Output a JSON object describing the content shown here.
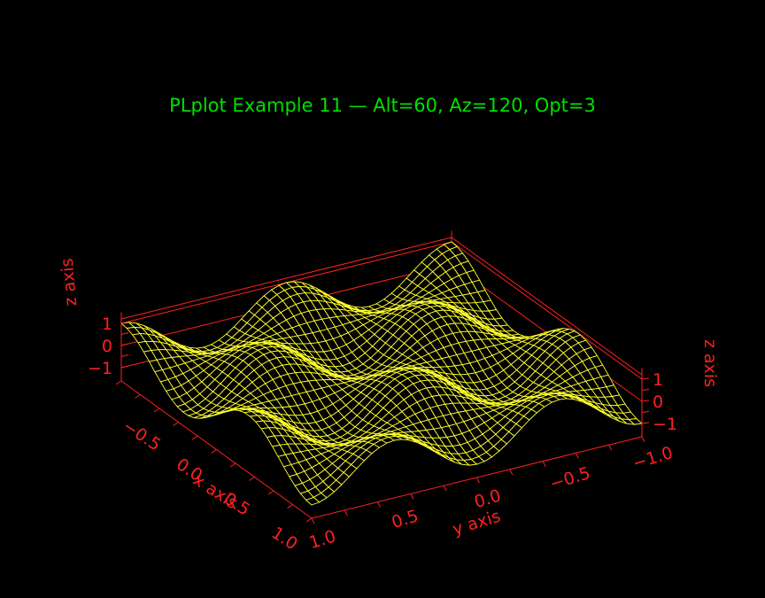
{
  "chart_data": {
    "type": "surface-mesh-3d",
    "title": "PLplot Example 11 — Alt=60, Az=120, Opt=3",
    "xlabel": "x axis",
    "ylabel": "y axis",
    "zlabel": "z axis",
    "xlim": [
      -1.0,
      1.0
    ],
    "ylim": [
      -1.0,
      1.0
    ],
    "zlim": [
      -1.2,
      1.2
    ],
    "altitude": 60,
    "azimuth": 120,
    "opt": 3,
    "x_ticks": [
      {
        "value": 1.0,
        "label": "1.0"
      },
      {
        "value": 0.5,
        "label": "0.5"
      },
      {
        "value": 0.0,
        "label": "0.0"
      },
      {
        "value": -0.5,
        "label": "−0.5"
      }
    ],
    "y_ticks": [
      {
        "value": 1.0,
        "label": "1.0"
      },
      {
        "value": 0.5,
        "label": "0.5"
      },
      {
        "value": 0.0,
        "label": "0.0"
      },
      {
        "value": -0.5,
        "label": "−0.5"
      },
      {
        "value": -1.0,
        "label": "−1.0"
      }
    ],
    "z_ticks_left": [
      {
        "value": 1,
        "label": "1"
      },
      {
        "value": 0,
        "label": "0"
      },
      {
        "value": -1,
        "label": "−1"
      }
    ],
    "z_ticks_right": [
      {
        "value": 1,
        "label": "1"
      },
      {
        "value": 0,
        "label": "0"
      },
      {
        "value": -1,
        "label": "−1"
      }
    ],
    "surface": "z = sin(1.5πx)·cos(2πy) over a 35×45 grid",
    "grid_nx": 35,
    "grid_ny": 45,
    "colors": {
      "background": "#000000",
      "title": "#00e000",
      "axes": "#ff2020",
      "mesh": "#ffff30"
    }
  }
}
